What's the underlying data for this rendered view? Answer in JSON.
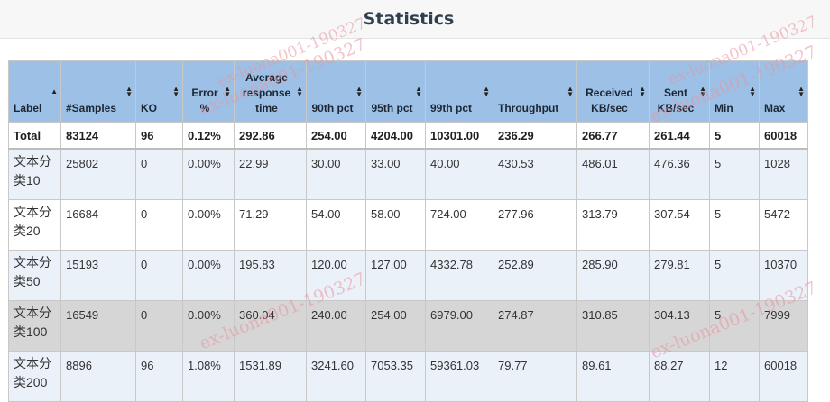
{
  "page": {
    "title": "Statistics",
    "watermark": "ex-luona001-190327"
  },
  "table": {
    "columns": [
      {
        "key": "label",
        "text": "Label",
        "sort": "asc"
      },
      {
        "key": "samples",
        "text": "#Samples",
        "sort": "both"
      },
      {
        "key": "ko",
        "text": "KO",
        "sort": "both"
      },
      {
        "key": "error",
        "text": "Error %",
        "sort": "both"
      },
      {
        "key": "avg",
        "text": "Average response time",
        "sort": "both"
      },
      {
        "key": "p90",
        "text": "90th pct",
        "sort": "both"
      },
      {
        "key": "p95",
        "text": "95th pct",
        "sort": "both"
      },
      {
        "key": "p99",
        "text": "99th pct",
        "sort": "both"
      },
      {
        "key": "throughput",
        "text": "Throughput",
        "sort": "both"
      },
      {
        "key": "received",
        "text": "Received KB/sec",
        "sort": "both"
      },
      {
        "key": "sent",
        "text": "Sent KB/sec",
        "sort": "both"
      },
      {
        "key": "min",
        "text": "Min",
        "sort": "both"
      },
      {
        "key": "max",
        "text": "Max",
        "sort": "both"
      }
    ],
    "total": [
      "Total",
      "83124",
      "96",
      "0.12%",
      "292.86",
      "254.00",
      "4204.00",
      "10301.00",
      "236.29",
      "266.77",
      "261.44",
      "5",
      "60018"
    ],
    "rows": [
      [
        "文本分类10",
        "25802",
        "0",
        "0.00%",
        "22.99",
        "30.00",
        "33.00",
        "40.00",
        "430.53",
        "486.01",
        "476.36",
        "5",
        "1028"
      ],
      [
        "文本分类20",
        "16684",
        "0",
        "0.00%",
        "71.29",
        "54.00",
        "58.00",
        "724.00",
        "277.96",
        "313.79",
        "307.54",
        "5",
        "5472"
      ],
      [
        "文本分类50",
        "15193",
        "0",
        "0.00%",
        "195.83",
        "120.00",
        "127.00",
        "4332.78",
        "252.89",
        "285.90",
        "279.81",
        "5",
        "10370"
      ],
      [
        "文本分类100",
        "16549",
        "0",
        "0.00%",
        "360.04",
        "240.00",
        "254.00",
        "6979.00",
        "274.87",
        "310.85",
        "304.13",
        "5",
        "7999"
      ],
      [
        "文本分类200",
        "8896",
        "96",
        "1.08%",
        "1531.89",
        "3241.60",
        "7053.35",
        "59361.03",
        "79.77",
        "89.61",
        "88.27",
        "12",
        "60018"
      ]
    ]
  }
}
